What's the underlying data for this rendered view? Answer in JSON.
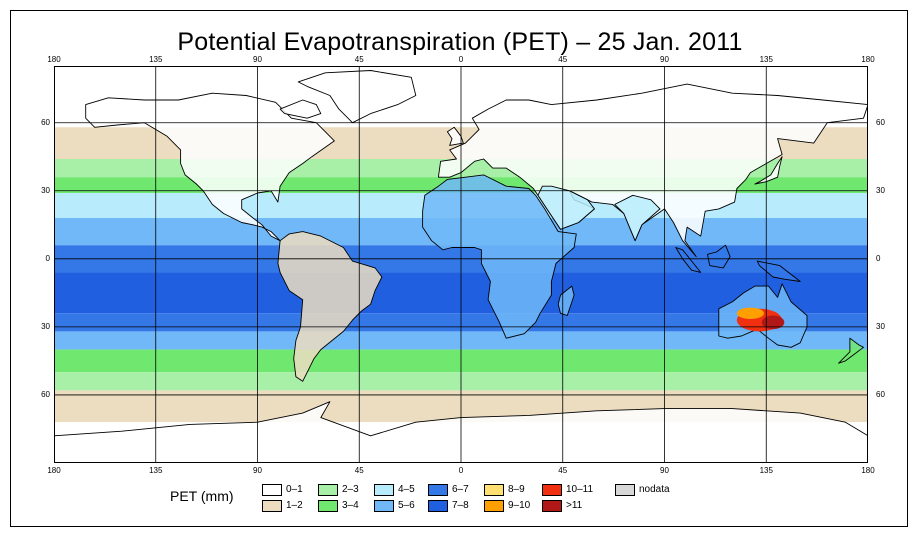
{
  "title": "Potential Evapotranspiration (PET) – 25 Jan. 2011",
  "axes": {
    "longitude_ticks": [
      "180",
      "135",
      "90",
      "45",
      "0",
      "45",
      "90",
      "135",
      "180"
    ],
    "latitude_ticks": [
      "60",
      "30",
      "0",
      "30",
      "60"
    ],
    "lon_values": [
      -180,
      -135,
      -90,
      -45,
      0,
      45,
      90,
      135,
      180
    ],
    "lat_values": [
      60,
      30,
      0,
      -30,
      -60
    ],
    "lat_range": [
      -90,
      85
    ],
    "lon_range": [
      -180,
      180
    ],
    "grid": true
  },
  "legend": {
    "label": "PET (mm)",
    "placement": "bottom-center",
    "items": [
      {
        "label": "0–1",
        "color": "#ffffff"
      },
      {
        "label": "1–2",
        "color": "#ecdcc0"
      },
      {
        "label": "2–3",
        "color": "#a8f0a8"
      },
      {
        "label": "3–4",
        "color": "#70e870"
      },
      {
        "label": "4–5",
        "color": "#b8ecfc"
      },
      {
        "label": "5–6",
        "color": "#70b8f8"
      },
      {
        "label": "6–7",
        "color": "#3478e8"
      },
      {
        "label": "7–8",
        "color": "#2060e0"
      },
      {
        "label": "8–9",
        "color": "#ffe070"
      },
      {
        "label": "9–10",
        "color": "#ffa000"
      },
      {
        "label": "10–11",
        "color": "#f03010"
      },
      {
        "label": ">11",
        "color": "#b01818"
      },
      {
        "label": "nodata",
        "color": "#d8d8d8"
      }
    ]
  },
  "zones": [
    {
      "lat_top": 85,
      "lat_bottom": 58,
      "color": "#ffffff"
    },
    {
      "lat_top": 58,
      "lat_bottom": 44,
      "color": "#ecdcc0"
    },
    {
      "lat_top": 44,
      "lat_bottom": 36,
      "color": "#a8f0a8"
    },
    {
      "lat_top": 36,
      "lat_bottom": 29,
      "color": "#70e870"
    },
    {
      "lat_top": 29,
      "lat_bottom": 18,
      "color": "#b8ecfc"
    },
    {
      "lat_top": 18,
      "lat_bottom": 6,
      "color": "#70b8f8"
    },
    {
      "lat_top": 6,
      "lat_bottom": -6,
      "color": "#3478e8"
    },
    {
      "lat_top": -6,
      "lat_bottom": -24,
      "color": "#2060e0"
    },
    {
      "lat_top": -24,
      "lat_bottom": -32,
      "color": "#3478e8"
    },
    {
      "lat_top": -32,
      "lat_bottom": -40,
      "color": "#70b8f8"
    },
    {
      "lat_top": -40,
      "lat_bottom": -50,
      "color": "#70e870"
    },
    {
      "lat_top": -50,
      "lat_bottom": -58,
      "color": "#a8f0a8"
    },
    {
      "lat_top": -58,
      "lat_bottom": -72,
      "color": "#ecdcc0"
    },
    {
      "lat_top": -72,
      "lat_bottom": -90,
      "color": "#ffffff"
    }
  ],
  "hotspots": [
    {
      "name": "australia-hot",
      "lon": 132,
      "lat": -27,
      "rlon": 10,
      "rlat": 5,
      "color": "#f03010"
    },
    {
      "name": "australia-core",
      "lon": 138,
      "lat": -28,
      "rlon": 5,
      "rlat": 3,
      "color": "#b01818"
    },
    {
      "name": "australia-warm",
      "lon": 128,
      "lat": -24,
      "rlon": 6,
      "rlat": 2.5,
      "color": "#ffa000"
    }
  ],
  "land": [
    {
      "name": "north-america",
      "color": "#ffffff",
      "pts": [
        [
          -166,
          68
        ],
        [
          -156,
          71
        ],
        [
          -140,
          70
        ],
        [
          -125,
          70
        ],
        [
          -110,
          73
        ],
        [
          -95,
          72
        ],
        [
          -82,
          69
        ],
        [
          -75,
          62
        ],
        [
          -64,
          60
        ],
        [
          -56,
          52
        ],
        [
          -66,
          45
        ],
        [
          -70,
          42
        ],
        [
          -76,
          38
        ],
        [
          -80,
          32
        ],
        [
          -81,
          25
        ],
        [
          -84,
          30
        ],
        [
          -90,
          29
        ],
        [
          -97,
          26
        ],
        [
          -97,
          22
        ],
        [
          -92,
          18
        ],
        [
          -88,
          15
        ],
        [
          -84,
          10
        ],
        [
          -80,
          8
        ],
        [
          -84,
          12
        ],
        [
          -88,
          14
        ],
        [
          -92,
          15
        ],
        [
          -97,
          16
        ],
        [
          -105,
          20
        ],
        [
          -110,
          24
        ],
        [
          -114,
          30
        ],
        [
          -117,
          33
        ],
        [
          -122,
          37
        ],
        [
          -124,
          42
        ],
        [
          -124,
          48
        ],
        [
          -130,
          54
        ],
        [
          -140,
          60
        ],
        [
          -152,
          59
        ],
        [
          -162,
          58
        ],
        [
          -166,
          62
        ]
      ]
    },
    {
      "name": "greenland",
      "color": "#ffffff",
      "pts": [
        [
          -72,
          78
        ],
        [
          -60,
          82
        ],
        [
          -40,
          83
        ],
        [
          -22,
          80
        ],
        [
          -20,
          72
        ],
        [
          -28,
          68
        ],
        [
          -40,
          64
        ],
        [
          -48,
          60
        ],
        [
          -54,
          66
        ],
        [
          -58,
          72
        ],
        [
          -68,
          76
        ]
      ]
    },
    {
      "name": "south-america",
      "color": "#ecdcc0",
      "pts": [
        [
          -80,
          8
        ],
        [
          -76,
          11
        ],
        [
          -70,
          12
        ],
        [
          -62,
          10
        ],
        [
          -52,
          5
        ],
        [
          -48,
          -1
        ],
        [
          -38,
          -4
        ],
        [
          -35,
          -8
        ],
        [
          -38,
          -14
        ],
        [
          -40,
          -20
        ],
        [
          -44,
          -23
        ],
        [
          -48,
          -27
        ],
        [
          -52,
          -32
        ],
        [
          -57,
          -36
        ],
        [
          -62,
          -40
        ],
        [
          -65,
          -44
        ],
        [
          -68,
          -50
        ],
        [
          -70,
          -54
        ],
        [
          -73,
          -52
        ],
        [
          -74,
          -44
        ],
        [
          -73,
          -36
        ],
        [
          -71,
          -30
        ],
        [
          -70,
          -18
        ],
        [
          -76,
          -14
        ],
        [
          -80,
          -6
        ],
        [
          -81,
          -2
        ]
      ]
    },
    {
      "name": "europe-asia",
      "color": "#ffffff",
      "pts": [
        [
          -10,
          36
        ],
        [
          -9,
          43
        ],
        [
          -2,
          44
        ],
        [
          -5,
          48
        ],
        [
          2,
          51
        ],
        [
          5,
          54
        ],
        [
          8,
          57
        ],
        [
          5,
          62
        ],
        [
          12,
          66
        ],
        [
          20,
          70
        ],
        [
          30,
          70
        ],
        [
          40,
          68
        ],
        [
          60,
          70
        ],
        [
          80,
          73
        ],
        [
          100,
          77
        ],
        [
          120,
          73
        ],
        [
          140,
          72
        ],
        [
          160,
          70
        ],
        [
          180,
          68
        ],
        [
          178,
          62
        ],
        [
          162,
          60
        ],
        [
          156,
          51
        ],
        [
          140,
          53
        ],
        [
          142,
          46
        ],
        [
          135,
          42
        ],
        [
          128,
          38
        ],
        [
          126,
          35
        ],
        [
          122,
          31
        ],
        [
          121,
          25
        ],
        [
          114,
          22
        ],
        [
          108,
          21
        ],
        [
          106,
          10
        ],
        [
          100,
          14
        ],
        [
          99,
          8
        ],
        [
          104,
          1
        ],
        [
          98,
          8
        ],
        [
          94,
          16
        ],
        [
          90,
          22
        ],
        [
          80,
          15
        ],
        [
          77,
          8
        ],
        [
          72,
          20
        ],
        [
          67,
          24
        ],
        [
          58,
          25
        ],
        [
          56,
          26
        ],
        [
          52,
          28
        ],
        [
          48,
          30
        ],
        [
          50,
          26
        ],
        [
          55,
          24
        ],
        [
          59,
          22
        ],
        [
          52,
          16
        ],
        [
          44,
          13
        ],
        [
          42,
          16
        ],
        [
          38,
          22
        ],
        [
          34,
          28
        ],
        [
          32,
          31
        ],
        [
          26,
          36
        ],
        [
          20,
          40
        ],
        [
          14,
          40
        ],
        [
          10,
          44
        ],
        [
          6,
          43
        ],
        [
          0,
          38
        ],
        [
          -5,
          36
        ]
      ]
    },
    {
      "name": "africa",
      "color": "#70b8f8",
      "pts": [
        [
          -17,
          21
        ],
        [
          -16,
          28
        ],
        [
          -10,
          32
        ],
        [
          -6,
          35
        ],
        [
          10,
          37
        ],
        [
          20,
          32
        ],
        [
          30,
          31
        ],
        [
          33,
          28
        ],
        [
          37,
          22
        ],
        [
          43,
          12
        ],
        [
          51,
          11
        ],
        [
          50,
          5
        ],
        [
          42,
          -2
        ],
        [
          40,
          -10
        ],
        [
          40,
          -16
        ],
        [
          35,
          -24
        ],
        [
          33,
          -28
        ],
        [
          28,
          -33
        ],
        [
          20,
          -35
        ],
        [
          17,
          -28
        ],
        [
          12,
          -18
        ],
        [
          13,
          -10
        ],
        [
          9,
          -2
        ],
        [
          9,
          4
        ],
        [
          6,
          5
        ],
        [
          -4,
          5
        ],
        [
          -8,
          4
        ],
        [
          -13,
          8
        ],
        [
          -17,
          14
        ]
      ]
    },
    {
      "name": "arabia",
      "color": "#b8ecfc",
      "pts": [
        [
          34,
          28
        ],
        [
          38,
          22
        ],
        [
          42,
          16
        ],
        [
          44,
          13
        ],
        [
          52,
          16
        ],
        [
          59,
          22
        ],
        [
          56,
          26
        ],
        [
          52,
          28
        ],
        [
          48,
          30
        ],
        [
          40,
          32
        ],
        [
          36,
          32
        ]
      ]
    },
    {
      "name": "india",
      "color": "#b8ecfc",
      "pts": [
        [
          68,
          24
        ],
        [
          72,
          20
        ],
        [
          77,
          8
        ],
        [
          80,
          15
        ],
        [
          88,
          22
        ],
        [
          84,
          26
        ],
        [
          76,
          28
        ]
      ]
    },
    {
      "name": "australia",
      "color": "#70b8f8",
      "pts": [
        [
          114,
          -22
        ],
        [
          114,
          -34
        ],
        [
          118,
          -35
        ],
        [
          124,
          -34
        ],
        [
          131,
          -31
        ],
        [
          136,
          -35
        ],
        [
          140,
          -38
        ],
        [
          146,
          -39
        ],
        [
          150,
          -37
        ],
        [
          153,
          -30
        ],
        [
          153,
          -25
        ],
        [
          146,
          -19
        ],
        [
          142,
          -11
        ],
        [
          140,
          -17
        ],
        [
          136,
          -12
        ],
        [
          130,
          -12
        ],
        [
          125,
          -15
        ],
        [
          120,
          -19
        ]
      ]
    },
    {
      "name": "antarctica",
      "color": "#ffffff",
      "pts": [
        [
          -180,
          -78
        ],
        [
          -150,
          -76
        ],
        [
          -120,
          -73
        ],
        [
          -90,
          -72
        ],
        [
          -70,
          -68
        ],
        [
          -58,
          -63
        ],
        [
          -62,
          -70
        ],
        [
          -40,
          -78
        ],
        [
          -20,
          -72
        ],
        [
          0,
          -70
        ],
        [
          30,
          -69
        ],
        [
          60,
          -67
        ],
        [
          90,
          -66
        ],
        [
          120,
          -66
        ],
        [
          150,
          -68
        ],
        [
          170,
          -72
        ],
        [
          180,
          -78
        ],
        [
          180,
          -90
        ],
        [
          -180,
          -90
        ]
      ]
    },
    {
      "name": "borneo",
      "color": "#3478e8",
      "pts": [
        [
          109,
          2
        ],
        [
          110,
          -3
        ],
        [
          116,
          -4
        ],
        [
          119,
          1
        ],
        [
          117,
          6
        ],
        [
          113,
          3
        ]
      ]
    },
    {
      "name": "sumatra",
      "color": "#3478e8",
      "pts": [
        [
          95,
          5
        ],
        [
          98,
          4
        ],
        [
          106,
          -6
        ],
        [
          102,
          -5
        ],
        [
          98,
          0
        ]
      ]
    },
    {
      "name": "new-guinea",
      "color": "#3478e8",
      "pts": [
        [
          131,
          -1
        ],
        [
          141,
          -3
        ],
        [
          150,
          -10
        ],
        [
          143,
          -9
        ],
        [
          138,
          -8
        ],
        [
          132,
          -3
        ]
      ]
    },
    {
      "name": "madagascar",
      "color": "#70b8f8",
      "pts": [
        [
          44,
          -16
        ],
        [
          49,
          -12
        ],
        [
          50,
          -16
        ],
        [
          47,
          -25
        ],
        [
          44,
          -24
        ],
        [
          43,
          -20
        ]
      ]
    },
    {
      "name": "japan",
      "color": "#ffffff",
      "pts": [
        [
          130,
          33
        ],
        [
          135,
          34
        ],
        [
          140,
          36
        ],
        [
          141,
          41
        ],
        [
          142,
          45
        ],
        [
          140,
          42
        ],
        [
          137,
          37
        ],
        [
          132,
          34
        ]
      ]
    },
    {
      "name": "great-britain",
      "color": "#ffffff",
      "pts": [
        [
          -5,
          50
        ],
        [
          1,
          51
        ],
        [
          0,
          54
        ],
        [
          -3,
          58
        ],
        [
          -6,
          56
        ],
        [
          -4,
          53
        ]
      ]
    },
    {
      "name": "new-zealand",
      "color": "#70e870",
      "pts": [
        [
          172,
          -35
        ],
        [
          176,
          -38
        ],
        [
          178,
          -39
        ],
        [
          174,
          -42
        ],
        [
          170,
          -45
        ],
        [
          167,
          -46
        ],
        [
          172,
          -41
        ]
      ]
    },
    {
      "name": "baffin",
      "color": "#ffffff",
      "pts": [
        [
          -80,
          66
        ],
        [
          -70,
          70
        ],
        [
          -64,
          68
        ],
        [
          -62,
          64
        ],
        [
          -68,
          62
        ],
        [
          -78,
          64
        ]
      ]
    }
  ]
}
